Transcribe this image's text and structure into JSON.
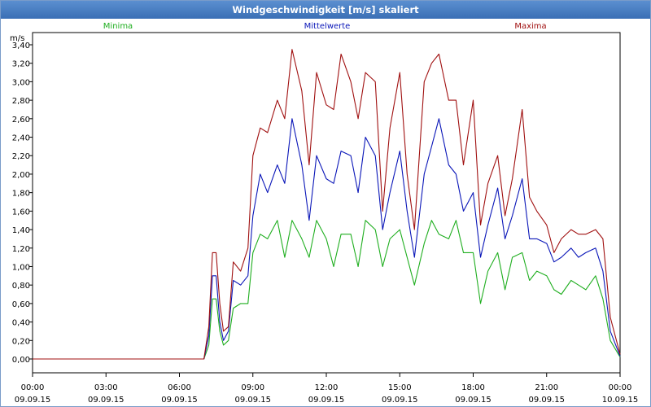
{
  "window": {
    "title": "Windgeschwindigkeit [m/s] skaliert"
  },
  "chart_data": {
    "type": "line",
    "title": "Windgeschwindigkeit [m/s] skaliert",
    "ylabel": "m/s",
    "ylim": [
      0,
      3.4
    ],
    "yticks": [
      "0,00",
      "0,20",
      "0,40",
      "0,60",
      "0,80",
      "1,00",
      "1,20",
      "1,40",
      "1,60",
      "1,80",
      "2,00",
      "2,20",
      "2,40",
      "2,60",
      "2,80",
      "3,00",
      "3,20",
      "3,40"
    ],
    "xlim": [
      0,
      24
    ],
    "xticks": [
      {
        "time": "00:00",
        "date": "09.09.15"
      },
      {
        "time": "03:00",
        "date": "09.09.15"
      },
      {
        "time": "06:00",
        "date": "09.09.15"
      },
      {
        "time": "09:00",
        "date": "09.09.15"
      },
      {
        "time": "12:00",
        "date": "09.09.15"
      },
      {
        "time": "15:00",
        "date": "09.09.15"
      },
      {
        "time": "18:00",
        "date": "09.09.15"
      },
      {
        "time": "21:00",
        "date": "09.09.15"
      },
      {
        "time": "00:00",
        "date": "10.09.15"
      }
    ],
    "grid": true,
    "series": [
      {
        "name": "Minima",
        "color": "#1fae1f",
        "x": [
          0,
          7.0,
          7.2,
          7.35,
          7.5,
          7.65,
          7.8,
          8.0,
          8.2,
          8.5,
          8.8,
          9.0,
          9.3,
          9.6,
          10.0,
          10.3,
          10.6,
          11.0,
          11.3,
          11.6,
          12.0,
          12.3,
          12.6,
          13.0,
          13.3,
          13.6,
          14.0,
          14.3,
          14.6,
          15.0,
          15.3,
          15.6,
          16.0,
          16.3,
          16.6,
          17.0,
          17.3,
          17.6,
          18.0,
          18.3,
          18.6,
          19.0,
          19.3,
          19.6,
          20.0,
          20.3,
          20.6,
          21.0,
          21.3,
          21.6,
          22.0,
          22.3,
          22.6,
          23.0,
          23.3,
          23.6,
          24.0
        ],
        "y": [
          0,
          0,
          0.15,
          0.65,
          0.65,
          0.3,
          0.15,
          0.2,
          0.55,
          0.6,
          0.6,
          1.15,
          1.35,
          1.3,
          1.5,
          1.1,
          1.5,
          1.3,
          1.1,
          1.5,
          1.3,
          1.0,
          1.35,
          1.35,
          1.0,
          1.5,
          1.4,
          1.0,
          1.3,
          1.4,
          1.1,
          0.8,
          1.25,
          1.5,
          1.35,
          1.3,
          1.5,
          1.15,
          1.15,
          0.6,
          0.95,
          1.15,
          0.75,
          1.1,
          1.15,
          0.85,
          0.95,
          0.9,
          0.75,
          0.7,
          0.85,
          0.8,
          0.75,
          0.9,
          0.65,
          0.2,
          0.02
        ]
      },
      {
        "name": "Mittelwerte",
        "color": "#0a16b8",
        "x": [
          0,
          7.0,
          7.2,
          7.35,
          7.5,
          7.65,
          7.8,
          8.0,
          8.2,
          8.5,
          8.8,
          9.0,
          9.3,
          9.6,
          10.0,
          10.3,
          10.6,
          11.0,
          11.3,
          11.6,
          12.0,
          12.3,
          12.6,
          13.0,
          13.3,
          13.6,
          14.0,
          14.3,
          14.6,
          15.0,
          15.3,
          15.6,
          16.0,
          16.3,
          16.6,
          17.0,
          17.3,
          17.6,
          18.0,
          18.3,
          18.6,
          19.0,
          19.3,
          19.6,
          20.0,
          20.3,
          20.6,
          21.0,
          21.3,
          21.6,
          22.0,
          22.3,
          22.6,
          23.0,
          23.3,
          23.6,
          24.0
        ],
        "y": [
          0,
          0,
          0.25,
          0.9,
          0.9,
          0.4,
          0.2,
          0.3,
          0.85,
          0.8,
          0.9,
          1.55,
          2.0,
          1.8,
          2.1,
          1.9,
          2.6,
          2.1,
          1.5,
          2.2,
          1.95,
          1.9,
          2.25,
          2.2,
          1.8,
          2.4,
          2.2,
          1.4,
          1.8,
          2.25,
          1.6,
          1.1,
          2.0,
          2.3,
          2.6,
          2.1,
          2.0,
          1.6,
          1.8,
          1.1,
          1.45,
          1.85,
          1.3,
          1.55,
          1.95,
          1.3,
          1.3,
          1.25,
          1.05,
          1.1,
          1.2,
          1.1,
          1.15,
          1.2,
          0.95,
          0.3,
          0.03
        ]
      },
      {
        "name": "Maxima",
        "color": "#a01010",
        "x": [
          0,
          7.0,
          7.2,
          7.35,
          7.5,
          7.65,
          7.8,
          8.0,
          8.2,
          8.5,
          8.8,
          9.0,
          9.3,
          9.6,
          10.0,
          10.3,
          10.6,
          11.0,
          11.3,
          11.6,
          12.0,
          12.3,
          12.6,
          13.0,
          13.3,
          13.6,
          14.0,
          14.3,
          14.6,
          15.0,
          15.3,
          15.6,
          16.0,
          16.3,
          16.6,
          17.0,
          17.3,
          17.6,
          18.0,
          18.3,
          18.6,
          19.0,
          19.3,
          19.6,
          20.0,
          20.3,
          20.6,
          21.0,
          21.3,
          21.6,
          22.0,
          22.3,
          22.6,
          23.0,
          23.3,
          23.6,
          24.0
        ],
        "y": [
          0,
          0,
          0.35,
          1.15,
          1.15,
          0.6,
          0.3,
          0.35,
          1.05,
          0.95,
          1.2,
          2.2,
          2.5,
          2.45,
          2.8,
          2.6,
          3.35,
          2.9,
          2.1,
          3.1,
          2.75,
          2.7,
          3.3,
          3.0,
          2.6,
          3.1,
          3.0,
          1.6,
          2.5,
          3.1,
          2.0,
          1.4,
          3.0,
          3.2,
          3.3,
          2.8,
          2.8,
          2.1,
          2.8,
          1.45,
          1.9,
          2.2,
          1.55,
          1.95,
          2.7,
          1.75,
          1.6,
          1.45,
          1.15,
          1.3,
          1.4,
          1.35,
          1.35,
          1.4,
          1.3,
          0.45,
          0.05
        ]
      }
    ]
  }
}
